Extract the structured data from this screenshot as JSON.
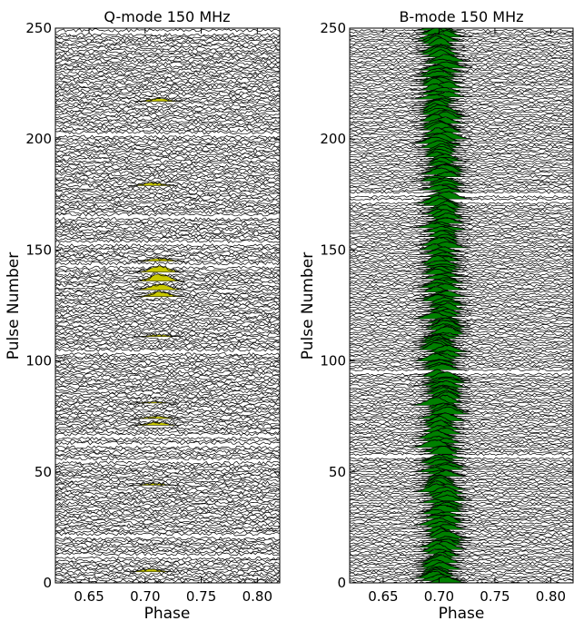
{
  "chart_data": [
    {
      "type": "stacked-pulse-profiles",
      "title": "Q-mode 150 MHz",
      "xlabel": "Phase",
      "ylabel": "Pulse Number",
      "xlim": [
        0.62,
        0.82
      ],
      "ylim": [
        0,
        250
      ],
      "xticks": [
        "0.65",
        "0.70",
        "0.75",
        "0.80"
      ],
      "yticks": [
        "0",
        "50",
        "100",
        "150",
        "200",
        "250"
      ],
      "fill_color": "#c8c800",
      "line_color": "#000000",
      "pulse_center_phase": 0.713,
      "missing_pulses": [
        12,
        21,
        55,
        62,
        66,
        104,
        143,
        153,
        165,
        202,
        248
      ],
      "emission_events": [
        {
          "pulse": 5,
          "phase": 0.705,
          "amplitude": 1.2
        },
        {
          "pulse": 44,
          "phase": 0.708,
          "amplitude": 0.8
        },
        {
          "pulse": 71,
          "phase": 0.71,
          "amplitude": 1.4
        },
        {
          "pulse": 74,
          "phase": 0.71,
          "amplitude": 1.0
        },
        {
          "pulse": 81,
          "phase": 0.708,
          "amplitude": 0.6
        },
        {
          "pulse": 111,
          "phase": 0.712,
          "amplitude": 0.8
        },
        {
          "pulse": 129,
          "phase": 0.713,
          "amplitude": 2.2
        },
        {
          "pulse": 132,
          "phase": 0.713,
          "amplitude": 2.6
        },
        {
          "pulse": 136,
          "phase": 0.713,
          "amplitude": 3.2
        },
        {
          "pulse": 140,
          "phase": 0.713,
          "amplitude": 2.8
        },
        {
          "pulse": 145,
          "phase": 0.713,
          "amplitude": 1.2
        },
        {
          "pulse": 179,
          "phase": 0.707,
          "amplitude": 1.4
        },
        {
          "pulse": 217,
          "phase": 0.712,
          "amplitude": 1.3
        }
      ]
    },
    {
      "type": "stacked-pulse-profiles",
      "title": "B-mode 150 MHz",
      "xlabel": "Phase",
      "ylabel": "Pulse Number",
      "xlim": [
        0.62,
        0.82
      ],
      "ylim": [
        0,
        250
      ],
      "xticks": [
        "0.65",
        "0.70",
        "0.75",
        "0.80"
      ],
      "yticks": [
        "0",
        "50",
        "100",
        "150",
        "200",
        "250"
      ],
      "fill_color": "#008000",
      "line_color": "#000000",
      "pulse_center_phase": 0.702,
      "missing_pulses": [
        57,
        95,
        172,
        175
      ],
      "emission": "every pulse, amplitude ~1.5-3.5, center ~0.702"
    }
  ]
}
